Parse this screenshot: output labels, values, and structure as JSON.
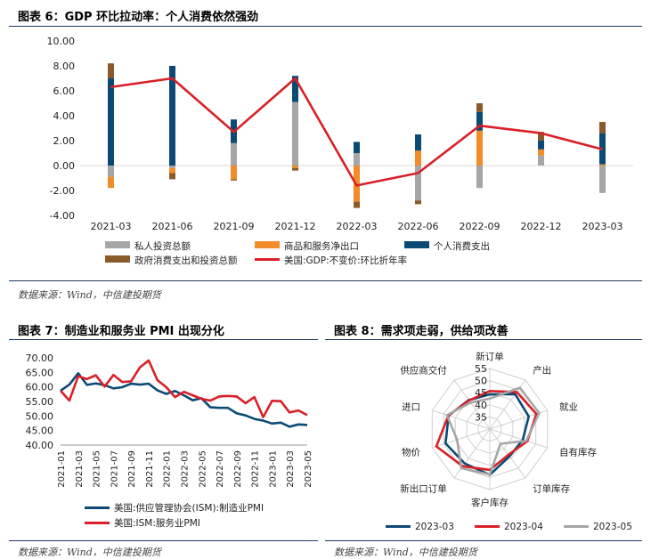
{
  "charts_header": {
    "fig6_title": "图表 6：GDP 环比拉动率：个人消费依然强劲",
    "fig7_title": "图表 7：制造业和服务业 PMI 出现分化",
    "fig8_title": "图表 8：需求项走弱，供给项改善",
    "source_text": "数据来源：Wind，中信建投期货"
  },
  "colors": {
    "gray": "#a6a6a6",
    "orange": "#f28c28",
    "navy": "#0b4a74",
    "brown": "#8b5a2b",
    "red": "#d92027",
    "rule": "#1f3864"
  },
  "chart_data": [
    {
      "id": "fig6",
      "type": "bar",
      "stacked": true,
      "title": "GDP 环比拉动率：个人消费依然强劲",
      "categories": [
        "2021-03",
        "2021-06",
        "2021-09",
        "2021-12",
        "2022-03",
        "2022-06",
        "2022-09",
        "2022-12",
        "2023-03"
      ],
      "yticks": [
        "10.00",
        "8.00",
        "6.00",
        "4.00",
        "2.00",
        "0.00",
        "-2.00",
        "-4.00"
      ],
      "ylim": [
        -4,
        10
      ],
      "series": [
        {
          "name": "私人投资总额",
          "kind": "bar",
          "color": "gray",
          "values": [
            -0.9,
            -0.2,
            1.8,
            5.1,
            1.0,
            -2.8,
            -1.8,
            0.8,
            -2.2
          ]
        },
        {
          "name": "商品和服务净出口",
          "kind": "bar",
          "color": "orange",
          "values": [
            -0.9,
            -0.4,
            -1.1,
            -0.2,
            -2.9,
            1.2,
            2.8,
            0.5,
            0.1
          ]
        },
        {
          "name": "个人消费支出",
          "kind": "bar",
          "color": "navy",
          "values": [
            7.0,
            8.0,
            1.9,
            2.1,
            0.9,
            1.3,
            1.5,
            0.7,
            2.5
          ]
        },
        {
          "name": "政府消费支出和投资总额",
          "kind": "bar",
          "color": "brown",
          "values": [
            1.2,
            -0.5,
            -0.1,
            -0.2,
            -0.5,
            -0.3,
            0.7,
            0.7,
            0.9
          ]
        },
        {
          "name": "美国:GDP:不变价:环比折年率",
          "kind": "line",
          "color": "red",
          "values": [
            6.3,
            7.0,
            2.7,
            7.0,
            -1.6,
            -0.6,
            3.2,
            2.6,
            1.3
          ]
        }
      ]
    },
    {
      "id": "fig7",
      "type": "line",
      "title": "制造业和服务业 PMI 出现分化",
      "x": [
        "2021-01",
        "2021-02",
        "2021-03",
        "2021-04",
        "2021-05",
        "2021-06",
        "2021-07",
        "2021-08",
        "2021-09",
        "2021-10",
        "2021-11",
        "2021-12",
        "2022-01",
        "2022-02",
        "2022-03",
        "2022-04",
        "2022-05",
        "2022-06",
        "2022-07",
        "2022-08",
        "2022-09",
        "2022-10",
        "2022-11",
        "2022-12",
        "2023-01",
        "2023-02",
        "2023-03",
        "2023-04",
        "2023-05"
      ],
      "xticks": [
        "2021-01",
        "2021-03",
        "2021-05",
        "2021-07",
        "2021-09",
        "2021-11",
        "2022-01",
        "2022-03",
        "2022-05",
        "2022-07",
        "2022-09",
        "2022-11",
        "2023-01",
        "2023-03",
        "2023-05"
      ],
      "yticks": [
        "70.00",
        "65.00",
        "60.00",
        "55.00",
        "50.00",
        "45.00",
        "40.00"
      ],
      "ylim": [
        40,
        70
      ],
      "series": [
        {
          "name": "美国:供应管理协会(ISM):制造业PMI",
          "color": "navy",
          "values": [
            58.7,
            60.8,
            64.7,
            60.7,
            61.2,
            60.6,
            59.5,
            59.9,
            61.1,
            60.8,
            61.1,
            58.8,
            57.6,
            58.6,
            57.1,
            55.4,
            56.1,
            53.0,
            52.8,
            52.8,
            50.9,
            50.2,
            49.0,
            48.4,
            47.4,
            47.7,
            46.3,
            47.1,
            46.9
          ]
        },
        {
          "name": "美国:ISM:服务业PMI",
          "color": "red",
          "values": [
            58.7,
            55.3,
            63.7,
            62.7,
            64.0,
            60.1,
            64.1,
            61.7,
            61.9,
            66.7,
            69.1,
            62.3,
            59.9,
            56.5,
            58.3,
            57.1,
            55.9,
            55.3,
            56.7,
            56.9,
            56.7,
            54.4,
            56.5,
            49.6,
            55.2,
            55.1,
            51.2,
            51.9,
            50.3
          ]
        }
      ]
    },
    {
      "id": "fig8",
      "type": "radar",
      "title": "需求项走弱，供给项改善",
      "axes": [
        "新订单",
        "产出",
        "就业",
        "自有库存",
        "订单库存",
        "客户库存",
        "新出口订单",
        "物价",
        "进口",
        "供应商交付"
      ],
      "rticks": [
        "55",
        "50",
        "45",
        "40",
        "35"
      ],
      "rlim": [
        30,
        55
      ],
      "series": [
        {
          "name": "2023-03",
          "color": "navy",
          "values": [
            44.3,
            47.8,
            46.9,
            44.3,
            43.9,
            48.9,
            47.6,
            49.2,
            47.9,
            44.8
          ]
        },
        {
          "name": "2023-04",
          "color": "red",
          "values": [
            45.7,
            48.9,
            50.2,
            46.3,
            43.1,
            46.9,
            49.0,
            53.2,
            48.0,
            44.6
          ]
        },
        {
          "name": "2023-05",
          "color": "gray",
          "values": [
            42.6,
            51.1,
            51.4,
            45.8,
            37.5,
            48.8,
            50.0,
            44.2,
            48.6,
            43.5
          ]
        }
      ]
    }
  ]
}
